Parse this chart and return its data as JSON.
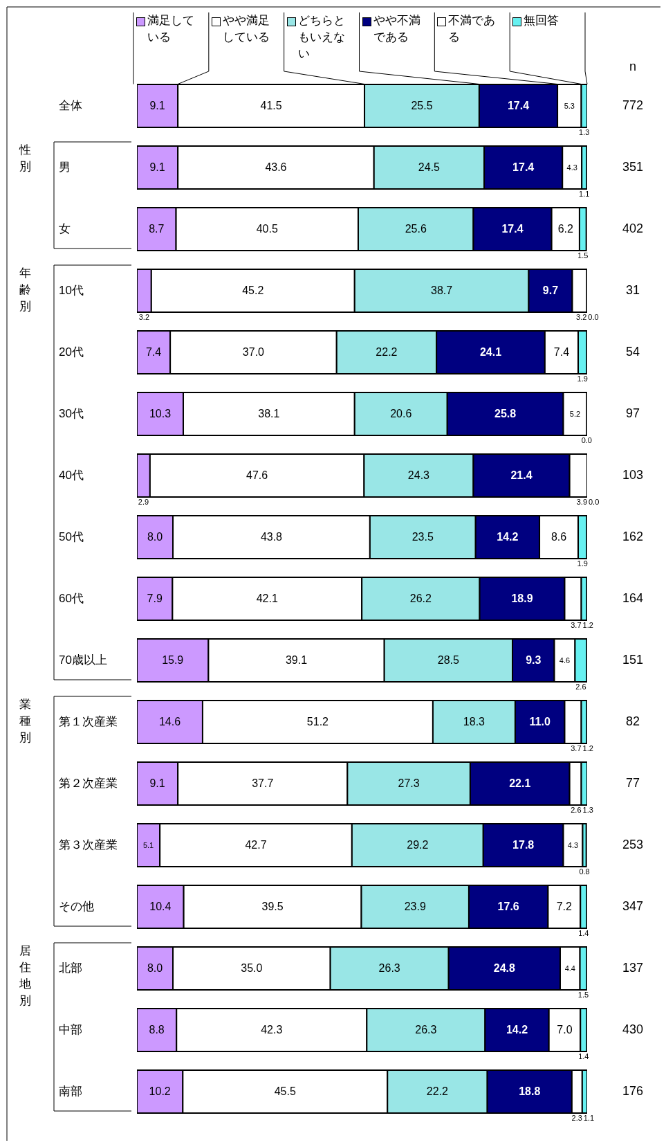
{
  "chart_data": {
    "type": "bar",
    "orientation": "horizontal",
    "stacked": true,
    "legend": "top",
    "categories": [
      "全体",
      "男",
      "女",
      "10代",
      "20代",
      "30代",
      "40代",
      "50代",
      "60代",
      "70歳以上",
      "第１次産業",
      "第２次産業",
      "第３次産業",
      "その他",
      "北部",
      "中部",
      "南部"
    ],
    "series": [
      {
        "name": "満足している",
        "color": "#cc99ff",
        "values": [
          9.1,
          9.1,
          8.7,
          3.2,
          7.4,
          10.3,
          2.9,
          8.0,
          7.9,
          15.9,
          14.6,
          9.1,
          5.1,
          10.4,
          8.0,
          8.8,
          10.2
        ],
        "value_labels": [
          "9.1",
          "9.1",
          "8.7",
          "3.2",
          "7.4",
          "10.3",
          "2.9",
          "8.0",
          "7.9",
          "15.9",
          "14.6",
          "9.1",
          "5.1",
          "10.4",
          "8.0",
          "8.8",
          "10.2"
        ]
      },
      {
        "name": "やや満足している",
        "color": "#ffffff",
        "values": [
          41.5,
          43.6,
          40.5,
          45.2,
          37.0,
          38.1,
          47.6,
          43.8,
          42.1,
          39.1,
          51.2,
          37.7,
          42.7,
          39.5,
          35.0,
          42.3,
          45.5
        ],
        "value_labels": [
          "41.5",
          "43.6",
          "40.5",
          "45.2",
          "37.0",
          "38.1",
          "47.6",
          "43.8",
          "42.1",
          "39.1",
          "51.2",
          "37.7",
          "42.7",
          "39.5",
          "35.0",
          "42.3",
          "45.5"
        ]
      },
      {
        "name": "どちらともいえない",
        "color": "#99e6e6",
        "values": [
          25.5,
          24.5,
          25.6,
          38.7,
          22.2,
          20.6,
          24.3,
          23.5,
          26.2,
          28.5,
          18.3,
          27.3,
          29.2,
          23.9,
          26.3,
          26.3,
          22.2
        ],
        "value_labels": [
          "25.5",
          "24.5",
          "25.6",
          "38.7",
          "22.2",
          "20.6",
          "24.3",
          "23.5",
          "26.2",
          "28.5",
          "18.3",
          "27.3",
          "29.2",
          "23.9",
          "26.3",
          "26.3",
          "22.2"
        ]
      },
      {
        "name": "やや不満である",
        "color": "#000080",
        "values": [
          17.4,
          17.4,
          17.4,
          9.7,
          24.1,
          25.8,
          21.4,
          14.2,
          18.9,
          9.3,
          11.0,
          22.1,
          17.8,
          17.6,
          24.8,
          14.2,
          18.8
        ],
        "value_labels": [
          "17.4",
          "17.4",
          "17.4",
          "9.7",
          "24.1",
          "25.8",
          "21.4",
          "14.2",
          "18.9",
          "9.3",
          "11.0",
          "22.1",
          "17.8",
          "17.6",
          "24.8",
          "14.2",
          "18.8"
        ]
      },
      {
        "name": "不満である",
        "color": "#ffffff",
        "values": [
          5.3,
          4.3,
          6.2,
          3.2,
          7.4,
          5.2,
          3.9,
          8.6,
          3.7,
          4.6,
          3.7,
          2.6,
          4.3,
          7.2,
          4.4,
          7.0,
          2.3
        ],
        "value_labels": [
          "5.3",
          "4.3",
          "6.2",
          "3.2",
          "7.4",
          "5.2",
          "3.9",
          "8.6",
          "3.7",
          "4.6",
          "3.7",
          "2.6",
          "4.3",
          "7.2",
          "4.4",
          "7.0",
          "2.3"
        ]
      },
      {
        "name": "無回答",
        "color": "#66f0f0",
        "values": [
          1.3,
          1.1,
          1.5,
          0.0,
          1.9,
          0.0,
          0.0,
          1.9,
          1.2,
          2.6,
          1.2,
          1.3,
          0.8,
          1.4,
          1.5,
          1.4,
          1.1
        ],
        "value_labels": [
          "1.3",
          "1.1",
          "1.5",
          "0.0",
          "1.9",
          "0.0",
          "0.0",
          "1.9",
          "1.2",
          "2.6",
          "1.2",
          "1.3",
          "0.8",
          "1.4",
          "1.5",
          "1.4",
          "1.1"
        ]
      }
    ],
    "annotations": [
      "n",
      "772",
      "351",
      "402",
      "31",
      "54",
      "97",
      "103",
      "162",
      "164",
      "151",
      "82",
      "77",
      "253",
      "347",
      "137",
      "430",
      "176",
      "性別",
      "年齢別",
      "業種別",
      "居住地別"
    ]
  }
}
